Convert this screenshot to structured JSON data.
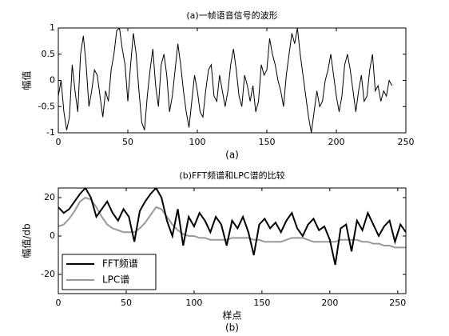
{
  "chart_data": [
    {
      "type": "line",
      "title": "(a)一帧语音信号的波形",
      "ylabel": "幅值",
      "xlabel": "(a)",
      "x": [
        0,
        2,
        4,
        6,
        8,
        10,
        12,
        14,
        16,
        18,
        20,
        22,
        24,
        26,
        28,
        30,
        32,
        34,
        36,
        38,
        40,
        42,
        44,
        46,
        48,
        50,
        52,
        54,
        56,
        58,
        60,
        62,
        64,
        66,
        68,
        70,
        72,
        74,
        76,
        78,
        80,
        82,
        84,
        86,
        88,
        90,
        92,
        94,
        96,
        98,
        100,
        102,
        104,
        106,
        108,
        110,
        112,
        114,
        116,
        118,
        120,
        122,
        124,
        126,
        128,
        130,
        132,
        134,
        136,
        138,
        140,
        142,
        144,
        146,
        148,
        150,
        152,
        154,
        156,
        158,
        160,
        162,
        164,
        166,
        168,
        170,
        172,
        174,
        176,
        178,
        180,
        182,
        184,
        186,
        188,
        190,
        192,
        194,
        196,
        198,
        200,
        202,
        204,
        206,
        208,
        210,
        212,
        214,
        216,
        218,
        220,
        222,
        224,
        226,
        228,
        230,
        232,
        234,
        236,
        238,
        240
      ],
      "values": [
        -0.3,
        0,
        -0.6,
        -0.95,
        -0.7,
        0.3,
        -0.2,
        -0.6,
        0.5,
        0.85,
        0.3,
        -0.5,
        -0.2,
        0.2,
        0.1,
        -0.3,
        -0.7,
        -0.2,
        -0.4,
        0.2,
        0.5,
        0.95,
        1,
        0.6,
        0.3,
        -0.4,
        0.3,
        0.9,
        0.5,
        -0.2,
        -0.8,
        -0.95,
        -0.3,
        0.2,
        0.6,
        -0.1,
        -0.5,
        0.3,
        0.5,
        0.1,
        -0.6,
        -0.3,
        0.2,
        0.7,
        0.3,
        -0.2,
        -0.6,
        -0.9,
        -0.4,
        0.1,
        -0.2,
        -0.6,
        -0.7,
        -0.2,
        0.2,
        0.3,
        -0.3,
        -0.4,
        0.1,
        -0.2,
        -0.5,
        -0.2,
        0.3,
        0.6,
        0.2,
        -0.3,
        -0.5,
        0.1,
        -0.1,
        -0.4,
        -0.1,
        -0.6,
        -0.4,
        0.3,
        0.1,
        0.2,
        0.8,
        0.5,
        0.3,
        0,
        -0.2,
        -0.5,
        0.1,
        0.5,
        0.9,
        0.7,
        1,
        0.5,
        0.1,
        -0.3,
        -0.7,
        -1,
        -0.6,
        -0.2,
        -0.5,
        -0.4,
        0,
        0.2,
        0.5,
        0.1,
        -0.3,
        -0.6,
        -0.3,
        0.3,
        0.5,
        0.2,
        -0.2,
        -0.6,
        -0.2,
        0.1,
        -0.4,
        -0.3,
        0.2,
        0.5,
        -0.2,
        -0.1,
        -0.4,
        -0.2,
        -0.3,
        0,
        -0.1
      ],
      "color": "#000000",
      "xlim": [
        0,
        250
      ],
      "xticks": [
        0,
        50,
        100,
        150,
        200,
        250
      ],
      "ylim": [
        -1,
        1
      ],
      "yticks": [
        -1,
        -0.5,
        0,
        0.5,
        1
      ]
    },
    {
      "type": "line",
      "title": "(b)FFT频谱和LPC谱的比较",
      "ylabel": "幅值/db",
      "xlabel": "样点",
      "caption": "(b)",
      "x": [
        0,
        4,
        8,
        12,
        16,
        20,
        24,
        28,
        32,
        36,
        40,
        44,
        48,
        52,
        56,
        60,
        64,
        68,
        72,
        76,
        80,
        84,
        88,
        92,
        96,
        100,
        104,
        108,
        112,
        116,
        120,
        124,
        128,
        132,
        136,
        140,
        144,
        148,
        152,
        156,
        160,
        164,
        168,
        172,
        176,
        180,
        184,
        188,
        192,
        196,
        200,
        204,
        208,
        212,
        216,
        220,
        224,
        228,
        232,
        236,
        240,
        244,
        248,
        252,
        256
      ],
      "series": [
        {
          "name": "FFT频谱",
          "color": "#000000",
          "values": [
            15,
            12,
            14,
            18,
            22,
            25,
            20,
            10,
            14,
            18,
            12,
            8,
            14,
            10,
            -3,
            13,
            18,
            22,
            25,
            20,
            8,
            0,
            14,
            -5,
            10,
            5,
            12,
            8,
            2,
            10,
            6,
            -5,
            8,
            4,
            10,
            2,
            -10,
            6,
            9,
            4,
            7,
            2,
            8,
            12,
            4,
            0,
            6,
            9,
            3,
            5,
            -2,
            -15,
            4,
            6,
            -8,
            8,
            3,
            12,
            6,
            0,
            5,
            8,
            -3,
            6,
            2
          ]
        },
        {
          "name": "LPC谱",
          "color": "#999999",
          "values": [
            5,
            6,
            9,
            13,
            18,
            20,
            19,
            15,
            10,
            6,
            4,
            3,
            2,
            2,
            2,
            4,
            7,
            11,
            15,
            14,
            10,
            6,
            3,
            1,
            0,
            0,
            -1,
            -1,
            -2,
            -2,
            -2,
            -2,
            -1,
            -1,
            -1,
            -1,
            -2,
            -2,
            -3,
            -3,
            -3,
            -3,
            -2,
            -1,
            -1,
            -1,
            -2,
            -3,
            -3,
            -3,
            -3,
            -3,
            -2,
            -2,
            -2,
            -2,
            -3,
            -3,
            -4,
            -4,
            -5,
            -5,
            -6,
            -6,
            -6
          ]
        }
      ],
      "legend": "lower left",
      "xlim": [
        0,
        256
      ],
      "xticks": [
        0,
        50,
        100,
        150,
        200,
        250
      ],
      "ylim": [
        -30,
        25
      ],
      "yticks": [
        -20,
        0,
        20
      ]
    }
  ]
}
